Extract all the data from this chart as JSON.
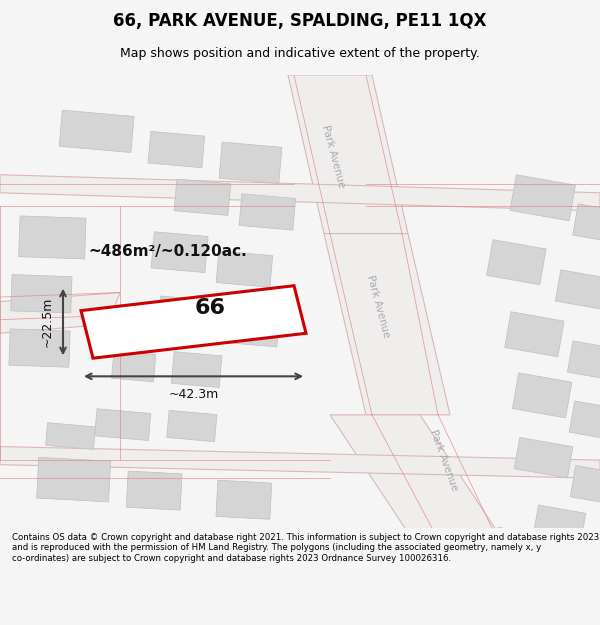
{
  "title": "66, PARK AVENUE, SPALDING, PE11 1QX",
  "subtitle": "Map shows position and indicative extent of the property.",
  "footer": "Contains OS data © Crown copyright and database right 2021. This information is subject to Crown copyright and database rights 2023 and is reproduced with the permission of HM Land Registry. The polygons (including the associated geometry, namely x, y co-ordinates) are subject to Crown copyright and database rights 2023 Ordnance Survey 100026316.",
  "bg_color": "#f5f5f5",
  "map_bg": "#f0efee",
  "road_color": "#e8c8c8",
  "road_fill": "#ffffff",
  "building_fill": "#d8d8d8",
  "building_edge": "#cccccc",
  "plot_fill": "#ffffff",
  "plot_edge": "#cc0000",
  "plot_lw": 2.2,
  "annotation_color": "#222222",
  "dim_line_color": "#444444",
  "area_text": "~486m²/~0.120ac.",
  "plot_number": "66",
  "dim_width": "~42.3m",
  "dim_height": "~22.5m",
  "street_label_1": "Park Avenue",
  "street_label_2": "Park Avenue",
  "street_label_3": "Park Avenue",
  "map_xlim": [
    0,
    10
  ],
  "map_ylim": [
    0,
    10
  ]
}
